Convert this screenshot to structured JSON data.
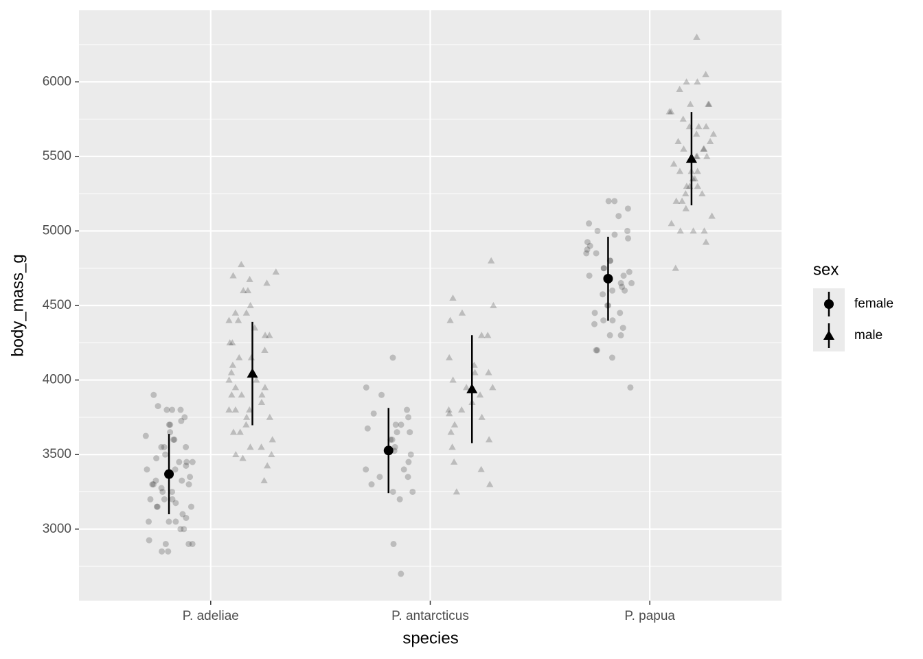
{
  "chart_data": {
    "type": "pointrange",
    "xlabel": "species",
    "ylabel": "body_mass_g",
    "categories": [
      "P. adeliae",
      "P. antarcticus",
      "P. papua"
    ],
    "ylim": [
      2520,
      6480
    ],
    "yticks": [
      3000,
      3500,
      4000,
      4500,
      5000,
      5500,
      6000
    ],
    "grid": true,
    "point_alpha": 0.2,
    "legend": {
      "title": "sex",
      "position": "right"
    },
    "series": [
      {
        "name": "female",
        "shape": "circle",
        "color": "#000000",
        "values": [
          3368.8,
          3527.2,
          4679.7
        ],
        "errors": [
          269.4,
          285.3,
          281.6
        ],
        "points": [
          [
            3900,
            3800,
            3800,
            3800,
            3825,
            3750,
            3725,
            3700,
            3700,
            3650,
            3625,
            3600,
            3600,
            3550,
            3550,
            3550,
            3500,
            3475,
            3450,
            3450,
            3450,
            3425,
            3400,
            3400,
            3350,
            3325,
            3325,
            3300,
            3300,
            3300,
            3275,
            3250,
            3250,
            3200,
            3200,
            3200,
            3175,
            3150,
            3150,
            3150,
            3100,
            3075,
            3050,
            3050,
            3050,
            3000,
            3000,
            2925,
            2900,
            2900,
            2900,
            2850,
            2850
          ],
          [
            4150,
            3950,
            3900,
            3800,
            3775,
            3750,
            3700,
            3700,
            3675,
            3650,
            3650,
            3600,
            3600,
            3550,
            3525,
            3500,
            3450,
            3400,
            3400,
            3350,
            3350,
            3300,
            3250,
            3250,
            3200,
            2900,
            2700
          ],
          [
            5200,
            5200,
            5150,
            5100,
            5050,
            5000,
            5000,
            4975,
            4950,
            4925,
            4900,
            4875,
            4850,
            4850,
            4800,
            4800,
            4750,
            4750,
            4725,
            4700,
            4700,
            4650,
            4650,
            4625,
            4600,
            4600,
            4575,
            4500,
            4500,
            4450,
            4450,
            4400,
            4400,
            4375,
            4350,
            4300,
            4300,
            4200,
            4200,
            4150,
            3950
          ]
        ]
      },
      {
        "name": "male",
        "shape": "triangle",
        "color": "#000000",
        "values": [
          4043.5,
          3939.0,
          5484.8
        ],
        "errors": [
          346.8,
          362.1,
          313.2
        ],
        "points": [
          [
            4775,
            4725,
            4700,
            4675,
            4650,
            4600,
            4600,
            4450,
            4450,
            4500,
            4400,
            4400,
            4350,
            4300,
            4300,
            4250,
            4250,
            4200,
            4150,
            4150,
            4100,
            4050,
            4000,
            4000,
            3950,
            3950,
            3900,
            3900,
            3900,
            3850,
            3800,
            3800,
            3800,
            3750,
            3750,
            3700,
            3650,
            3650,
            3600,
            3550,
            3550,
            3500,
            3500,
            3475,
            3425,
            3325
          ],
          [
            4800,
            4550,
            4500,
            4450,
            4400,
            4300,
            4300,
            4150,
            4100,
            4050,
            4050,
            4000,
            3950,
            3950,
            3950,
            3900,
            3850,
            3800,
            3800,
            3775,
            3750,
            3700,
            3650,
            3600,
            3550,
            3450,
            3400,
            3300,
            3250
          ],
          [
            6300,
            6050,
            6000,
            6000,
            5950,
            5850,
            5850,
            5850,
            5800,
            5800,
            5750,
            5700,
            5700,
            5700,
            5650,
            5650,
            5600,
            5600,
            5550,
            5550,
            5550,
            5500,
            5500,
            5500,
            5450,
            5400,
            5400,
            5400,
            5350,
            5350,
            5300,
            5300,
            5300,
            5250,
            5250,
            5200,
            5200,
            5150,
            5100,
            5050,
            5000,
            5000,
            5000,
            4925,
            4750
          ]
        ]
      }
    ]
  }
}
